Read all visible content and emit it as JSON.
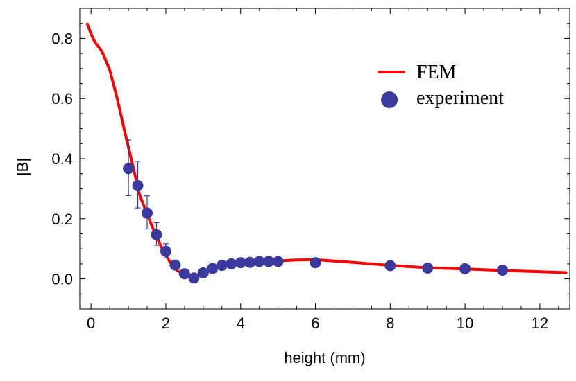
{
  "chart_data": {
    "type": "line+scatter",
    "xlabel": "height (mm)",
    "ylabel": "|B|",
    "xlim": [
      -0.3,
      12.8
    ],
    "ylim": [
      -0.1,
      0.9
    ],
    "xticks": [
      0,
      2,
      4,
      6,
      8,
      10,
      12
    ],
    "yticks": [
      0.0,
      0.2,
      0.4,
      0.6,
      0.8
    ],
    "xtick_labels": [
      "0",
      "2",
      "4",
      "6",
      "8",
      "10",
      "12"
    ],
    "ytick_labels": [
      "0.0",
      "0.2",
      "0.4",
      "0.6",
      "0.8"
    ],
    "legend_position": "top-right",
    "series": [
      {
        "name": "FEM",
        "kind": "line",
        "color": "#ff0000",
        "x": [
          -0.1,
          0.0,
          0.1,
          0.3,
          0.5,
          0.7,
          0.9,
          1.1,
          1.3,
          1.5,
          1.7,
          1.9,
          2.1,
          2.3,
          2.5,
          2.75,
          3.0,
          3.5,
          4.0,
          4.5,
          5.0,
          5.5,
          6.0,
          7.0,
          8.0,
          9.0,
          10.0,
          11.0,
          12.0,
          12.7
        ],
        "y": [
          0.848,
          0.815,
          0.788,
          0.755,
          0.695,
          0.6,
          0.49,
          0.385,
          0.28,
          0.215,
          0.155,
          0.1,
          0.058,
          0.028,
          0.012,
          0.008,
          0.022,
          0.045,
          0.053,
          0.058,
          0.06,
          0.063,
          0.064,
          0.055,
          0.045,
          0.037,
          0.033,
          0.028,
          0.024,
          0.021
        ]
      },
      {
        "name": "experiment",
        "kind": "scatter",
        "color": "#3a3a9e",
        "x": [
          1.0,
          1.25,
          1.5,
          1.75,
          2.0,
          2.25,
          2.5,
          2.75,
          3.0,
          3.25,
          3.5,
          3.75,
          4.0,
          4.25,
          4.5,
          4.75,
          5.0,
          6.0,
          8.0,
          9.0,
          10.0,
          11.0
        ],
        "y": [
          0.367,
          0.31,
          0.219,
          0.147,
          0.092,
          0.046,
          0.017,
          0.003,
          0.02,
          0.035,
          0.045,
          0.05,
          0.054,
          0.055,
          0.058,
          0.058,
          0.058,
          0.054,
          0.044,
          0.036,
          0.034,
          0.029
        ],
        "error_low": [
          0.277,
          0.236,
          0.166,
          0.112,
          0.07,
          null,
          null,
          null,
          null,
          null,
          null,
          null,
          null,
          null,
          null,
          null,
          null,
          null,
          null,
          null,
          null,
          null
        ],
        "error_high": [
          0.462,
          0.391,
          0.276,
          0.187,
          0.117,
          null,
          null,
          null,
          null,
          null,
          null,
          null,
          null,
          null,
          null,
          null,
          null,
          null,
          null,
          null,
          null,
          null
        ]
      }
    ]
  }
}
